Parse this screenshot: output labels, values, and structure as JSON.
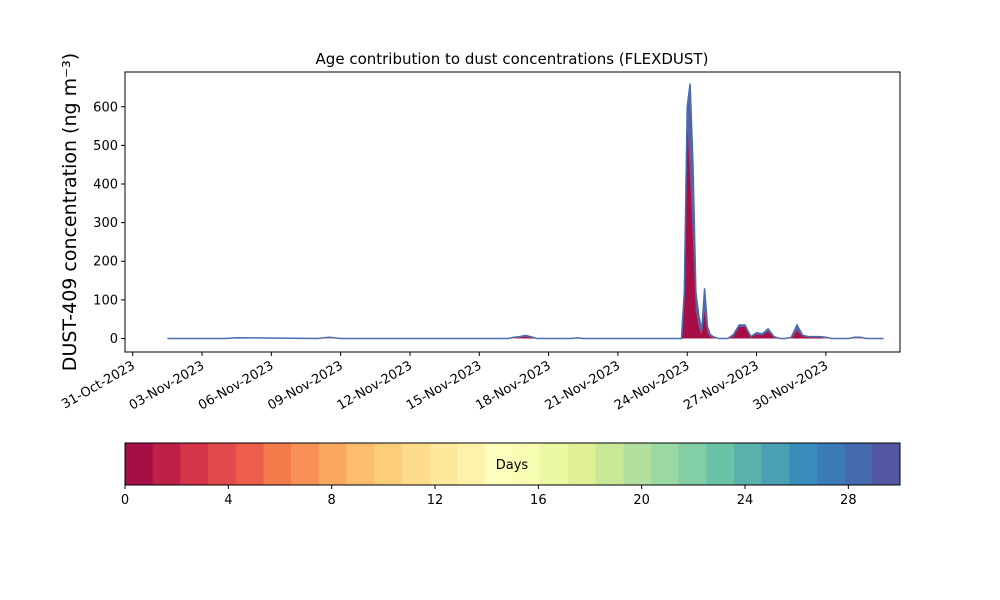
{
  "chart_data": {
    "type": "area",
    "title": "Age contribution to dust concentrations (FLEXDUST)",
    "ylabel": "DUST-409 concentration (ng m⁻³)",
    "xlabel": "",
    "ylim": [
      -35,
      690
    ],
    "xlim": [
      "2023-10-30T16:00",
      "2023-12-03T05:00"
    ],
    "yticks": [
      0,
      100,
      200,
      300,
      400,
      500,
      600
    ],
    "ytick_labels": [
      "0",
      "100",
      "200",
      "300",
      "400",
      "500",
      "600"
    ],
    "xticks": [
      "2023-10-31",
      "2023-11-03",
      "2023-11-06",
      "2023-11-09",
      "2023-11-12",
      "2023-11-15",
      "2023-11-18",
      "2023-11-21",
      "2023-11-24",
      "2023-11-27",
      "2023-11-30"
    ],
    "xtick_labels": [
      "31-Oct-2023",
      "03-Nov-2023",
      "06-Nov-2023",
      "09-Nov-2023",
      "12-Nov-2023",
      "15-Nov-2023",
      "18-Nov-2023",
      "21-Nov-2023",
      "24-Nov-2023",
      "27-Nov-2023",
      "30-Nov-2023"
    ],
    "grid": false,
    "legend": "none",
    "series": [
      {
        "x": [
          "2023-11-01T12:00",
          "2023-11-04T00:00",
          "2023-11-04T12:00",
          "2023-11-08T00:00",
          "2023-11-08T12:00",
          "2023-11-09T00:00",
          "2023-11-16T06:00",
          "2023-11-16T12:00",
          "2023-11-16T18:00",
          "2023-11-17T00:00",
          "2023-11-17T06:00",
          "2023-11-17T12:00",
          "2023-11-19T00:00",
          "2023-11-19T06:00",
          "2023-11-19T12:00",
          "2023-11-23T18:00",
          "2023-11-23T21:00",
          "2023-11-24T00:00",
          "2023-11-24T03:00",
          "2023-11-24T06:00",
          "2023-11-24T09:00",
          "2023-11-24T12:00",
          "2023-11-24T15:00",
          "2023-11-24T18:00",
          "2023-11-24T21:00",
          "2023-11-25T00:00",
          "2023-11-25T03:00",
          "2023-11-25T06:00",
          "2023-11-25T09:00",
          "2023-11-25T12:00",
          "2023-11-25T18:00",
          "2023-11-26T00:00",
          "2023-11-26T06:00",
          "2023-11-26T12:00",
          "2023-11-26T18:00",
          "2023-11-27T00:00",
          "2023-11-27T06:00",
          "2023-11-27T12:00",
          "2023-11-27T18:00",
          "2023-11-28T00:00",
          "2023-11-28T06:00",
          "2023-11-28T12:00",
          "2023-11-28T18:00",
          "2023-11-29T00:00",
          "2023-11-29T06:00",
          "2023-11-29T12:00",
          "2023-11-29T18:00",
          "2023-11-30T00:00",
          "2023-11-30T06:00",
          "2023-11-30T12:00",
          "2023-11-30T18:00",
          "2023-12-01T00:00",
          "2023-12-01T06:00",
          "2023-12-01T12:00",
          "2023-12-01T18:00",
          "2023-12-02T00:00",
          "2023-12-02T06:00",
          "2023-12-02T12:00"
        ],
        "total": [
          0,
          0,
          2,
          0,
          3,
          0,
          0,
          3,
          5,
          8,
          4,
          0,
          0,
          2,
          0,
          0,
          120,
          600,
          660,
          450,
          120,
          60,
          20,
          130,
          30,
          10,
          5,
          2,
          0,
          0,
          0,
          10,
          35,
          35,
          5,
          15,
          12,
          25,
          5,
          0,
          0,
          3,
          35,
          8,
          5,
          5,
          5,
          3,
          0,
          0,
          0,
          0,
          3,
          3,
          0,
          0,
          0,
          0
        ],
        "young": [
          0,
          0,
          0,
          0,
          0,
          0,
          0,
          0,
          2,
          5,
          2,
          0,
          0,
          0,
          0,
          0,
          90,
          560,
          420,
          250,
          70,
          30,
          10,
          70,
          15,
          5,
          2,
          0,
          0,
          0,
          0,
          5,
          30,
          30,
          3,
          10,
          8,
          18,
          3,
          0,
          0,
          0,
          20,
          5,
          3,
          3,
          3,
          0,
          0,
          0,
          0,
          0,
          0,
          0,
          0,
          0,
          0,
          0
        ]
      }
    ],
    "colorbar": {
      "label": "Days",
      "range": [
        0,
        30
      ],
      "ticks": [
        0,
        4,
        8,
        12,
        16,
        20,
        24,
        28
      ],
      "tick_labels": [
        "0",
        "4",
        "8",
        "12",
        "16",
        "20",
        "24",
        "28"
      ],
      "colors": [
        "#a50f45",
        "#be2148",
        "#d4354a",
        "#e24a4c",
        "#ec5e4a",
        "#f47a4b",
        "#f89157",
        "#fba862",
        "#fdbc6e",
        "#fecd7c",
        "#fedc8c",
        "#fee89c",
        "#fff3ac",
        "#fefebf",
        "#f7fcb2",
        "#ecf7a2",
        "#def093",
        "#c9e897",
        "#b3e09f",
        "#9ad8a4",
        "#82cea5",
        "#6bc3a7",
        "#5ab1aa",
        "#4aa0b2",
        "#3a8cbb",
        "#3b7bb8",
        "#4769b0",
        "#5357a3"
      ]
    }
  }
}
